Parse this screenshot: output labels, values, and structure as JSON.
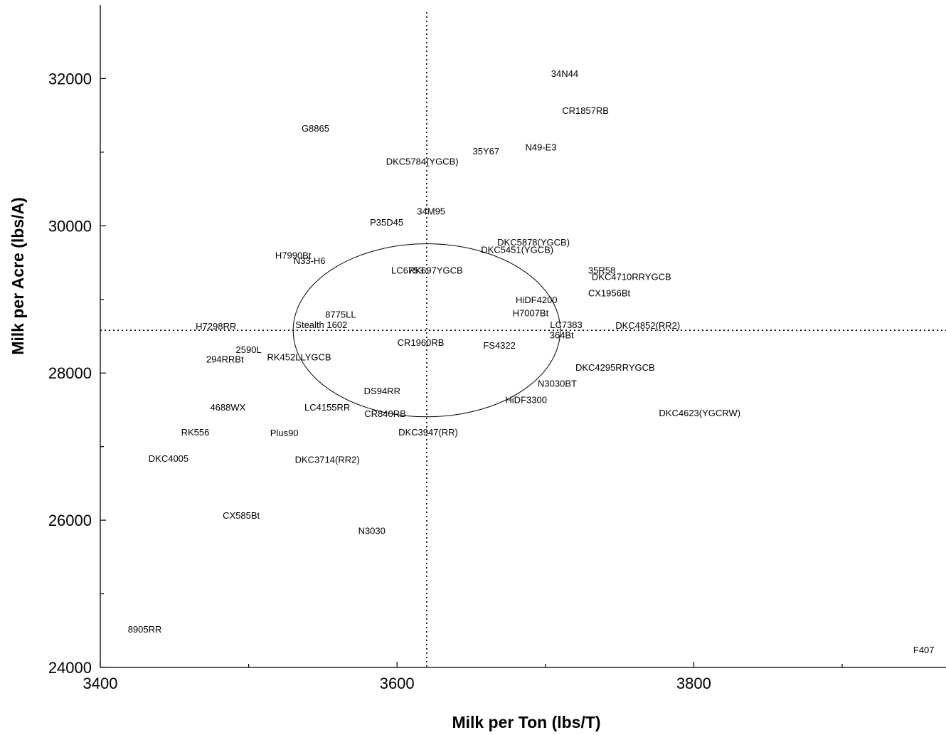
{
  "chart_data": {
    "type": "scatter",
    "xlabel": "Milk per Ton (lbs/T)",
    "ylabel": "Milk per Acre (lbs/A)",
    "xlim": [
      3400,
      3970
    ],
    "ylim": [
      24000,
      33000
    ],
    "x_major_ticks": [
      3400,
      3600,
      3800
    ],
    "x_minor_ticks": [
      3500,
      3700,
      3900
    ],
    "y_major_ticks": [
      24000,
      26000,
      28000,
      30000,
      32000
    ],
    "y_minor_ticks": [
      25000,
      27000,
      29000,
      31000
    ],
    "reference_lines": {
      "x": 3620,
      "y": 28580
    },
    "ellipse": {
      "cx": 3620,
      "cy": 28580,
      "rx_data": 90,
      "ry_data": 1175
    },
    "grid": false,
    "points": [
      {
        "label": "34N44",
        "x": 3713,
        "y": 32070
      },
      {
        "label": "CR1857RB",
        "x": 3727,
        "y": 31570
      },
      {
        "label": "G8865",
        "x": 3545,
        "y": 31330
      },
      {
        "label": "N49-E3",
        "x": 3697,
        "y": 31070
      },
      {
        "label": "35Y67",
        "x": 3660,
        "y": 31020
      },
      {
        "label": "DKC5784(YGCB)",
        "x": 3617,
        "y": 30880
      },
      {
        "label": "34M95",
        "x": 3623,
        "y": 30200
      },
      {
        "label": "P35D45",
        "x": 3593,
        "y": 30050
      },
      {
        "label": "DKC5878(YGCB)",
        "x": 3692,
        "y": 29780
      },
      {
        "label": "DKC5451(YGCB)",
        "x": 3681,
        "y": 29680
      },
      {
        "label": "H7990Bt",
        "x": 3530,
        "y": 29600
      },
      {
        "label": "N33-H6",
        "x": 3541,
        "y": 29530
      },
      {
        "label": "RK697YGCB",
        "x": 3626,
        "y": 29400
      },
      {
        "label": "LC6753",
        "x": 3607,
        "y": 29400
      },
      {
        "label": "35R58",
        "x": 3738,
        "y": 29400
      },
      {
        "label": "DKC4710RRYGCB",
        "x": 3758,
        "y": 29310
      },
      {
        "label": "CX1956Bt",
        "x": 3743,
        "y": 29090
      },
      {
        "label": "HiDF4200",
        "x": 3694,
        "y": 29000
      },
      {
        "label": "8775LL",
        "x": 3562,
        "y": 28800
      },
      {
        "label": "H7007Bt",
        "x": 3690,
        "y": 28820
      },
      {
        "label": "LC7383",
        "x": 3714,
        "y": 28660
      },
      {
        "label": "Stealth 1602",
        "x": 3549,
        "y": 28660
      },
      {
        "label": "H7298RR",
        "x": 3478,
        "y": 28640
      },
      {
        "label": "DKC4852(RR2)",
        "x": 3769,
        "y": 28650
      },
      {
        "label": "364Bt",
        "x": 3711,
        "y": 28520
      },
      {
        "label": "CR1960RB",
        "x": 3616,
        "y": 28420
      },
      {
        "label": "FS4322",
        "x": 3669,
        "y": 28380
      },
      {
        "label": "2590L",
        "x": 3500,
        "y": 28320
      },
      {
        "label": "RK452LLYGCB",
        "x": 3534,
        "y": 28220
      },
      {
        "label": "294RRBt",
        "x": 3484,
        "y": 28190
      },
      {
        "label": "DKC4295RRYGCB",
        "x": 3747,
        "y": 28080
      },
      {
        "label": "N3030BT",
        "x": 3708,
        "y": 27860
      },
      {
        "label": "DS94RR",
        "x": 3590,
        "y": 27760
      },
      {
        "label": "HiDF3300",
        "x": 3687,
        "y": 27640
      },
      {
        "label": "4688WX",
        "x": 3486,
        "y": 27540
      },
      {
        "label": "LC4155RR",
        "x": 3553,
        "y": 27540
      },
      {
        "label": "CR840RB",
        "x": 3592,
        "y": 27450
      },
      {
        "label": "DKC4623(YGCRW)",
        "x": 3804,
        "y": 27460
      },
      {
        "label": "DKC3947(RR)",
        "x": 3621,
        "y": 27200
      },
      {
        "label": "RK556",
        "x": 3464,
        "y": 27200
      },
      {
        "label": "Plus90",
        "x": 3524,
        "y": 27190
      },
      {
        "label": "DKC4005",
        "x": 3446,
        "y": 26840
      },
      {
        "label": "DKC3714(RR2)",
        "x": 3553,
        "y": 26830
      },
      {
        "label": "CX585Bt",
        "x": 3495,
        "y": 26070
      },
      {
        "label": "N3030",
        "x": 3583,
        "y": 25860
      },
      {
        "label": "8905RR",
        "x": 3430,
        "y": 24520
      },
      {
        "label": "F407",
        "x": 3955,
        "y": 24240
      }
    ]
  }
}
